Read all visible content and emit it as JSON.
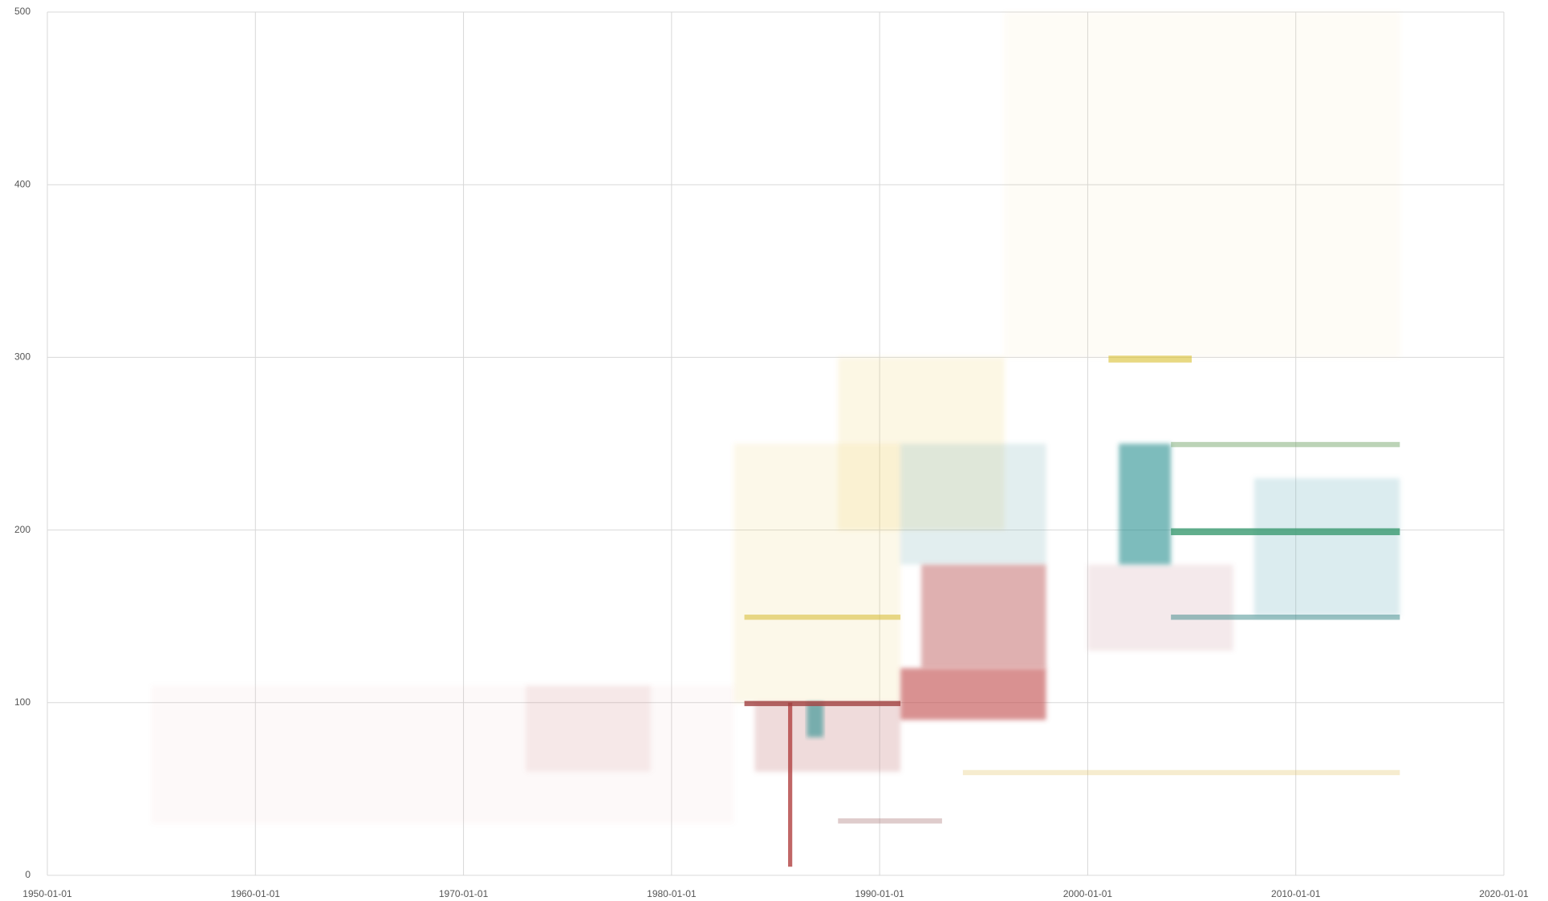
{
  "chart_data": {
    "type": "density",
    "xlim": [
      1950,
      2020
    ],
    "xticks": [
      {
        "value": 1950,
        "label": "1950-01-01"
      },
      {
        "value": 1960,
        "label": "1960-01-01"
      },
      {
        "value": 1970,
        "label": "1970-01-01"
      },
      {
        "value": 1980,
        "label": "1980-01-01"
      },
      {
        "value": 1990,
        "label": "1990-01-01"
      },
      {
        "value": 2000,
        "label": "2000-01-01"
      },
      {
        "value": 2010,
        "label": "2010-01-01"
      },
      {
        "value": 2020,
        "label": "2020-01-01"
      }
    ],
    "ylim": [
      0,
      500
    ],
    "yticks": [
      0,
      100,
      200,
      300,
      400,
      500
    ],
    "grid": true,
    "regions": [
      {
        "x": [
          1996,
          2015
        ],
        "y": [
          300,
          500
        ],
        "color": "#e8d060",
        "opacity": 0.06
      },
      {
        "x": [
          1955,
          1983
        ],
        "y": [
          30,
          110
        ],
        "color": "#d89090",
        "opacity": 0.05
      },
      {
        "x": [
          1973,
          1979
        ],
        "y": [
          60,
          110
        ],
        "color": "#c87070",
        "opacity": 0.12
      },
      {
        "x": [
          1983,
          1991
        ],
        "y": [
          100,
          250
        ],
        "color": "#e8c840",
        "opacity": 0.12
      },
      {
        "x": [
          1988,
          1996
        ],
        "y": [
          200,
          300
        ],
        "color": "#e8c840",
        "opacity": 0.14
      },
      {
        "x": [
          1984,
          1991
        ],
        "y": [
          60,
          100
        ],
        "color": "#b85a5a",
        "opacity": 0.22
      },
      {
        "x": [
          1991,
          1998
        ],
        "y": [
          180,
          250
        ],
        "color": "#5aa0a8",
        "opacity": 0.18
      },
      {
        "x": [
          1992,
          1998
        ],
        "y": [
          120,
          180
        ],
        "color": "#b85050",
        "opacity": 0.45
      },
      {
        "x": [
          1991,
          1998
        ],
        "y": [
          90,
          120
        ],
        "color": "#c04848",
        "opacity": 0.6
      },
      {
        "x": [
          2000,
          2007
        ],
        "y": [
          130,
          180
        ],
        "color": "#b86a7a",
        "opacity": 0.15
      },
      {
        "x": [
          2008,
          2015
        ],
        "y": [
          150,
          230
        ],
        "color": "#5aa8b8",
        "opacity": 0.22
      },
      {
        "x": [
          2001.5,
          2004
        ],
        "y": [
          180,
          250
        ],
        "color": "#2a9090",
        "opacity": 0.6
      },
      {
        "x": [
          1986.5,
          1987.3
        ],
        "y": [
          80,
          100
        ],
        "color": "#2a9090",
        "opacity": 0.6
      },
      {
        "x": [
          1985.6,
          1985.8
        ],
        "y": [
          5,
          100
        ],
        "color": "#b04040",
        "opacity": 0.8
      },
      {
        "x": [
          1983.5,
          1991
        ],
        "y": [
          98,
          101
        ],
        "color": "#a04040",
        "opacity": 0.8
      },
      {
        "x": [
          1983.5,
          1991
        ],
        "y": [
          148,
          151
        ],
        "color": "#d8c040",
        "opacity": 0.6
      },
      {
        "x": [
          2001,
          2005
        ],
        "y": [
          297,
          301
        ],
        "color": "#d8c030",
        "opacity": 0.6
      },
      {
        "x": [
          2004,
          2015
        ],
        "y": [
          248,
          251
        ],
        "color": "#7aa870",
        "opacity": 0.5
      },
      {
        "x": [
          2004,
          2015
        ],
        "y": [
          197,
          201
        ],
        "color": "#3a9a70",
        "opacity": 0.8
      },
      {
        "x": [
          2004,
          2015
        ],
        "y": [
          148,
          151
        ],
        "color": "#3a8888",
        "opacity": 0.5
      },
      {
        "x": [
          1988,
          1993
        ],
        "y": [
          30,
          33
        ],
        "color": "#b08080",
        "opacity": 0.4
      },
      {
        "x": [
          1994,
          2015
        ],
        "y": [
          58,
          61
        ],
        "color": "#e0c060",
        "opacity": 0.3
      }
    ]
  }
}
